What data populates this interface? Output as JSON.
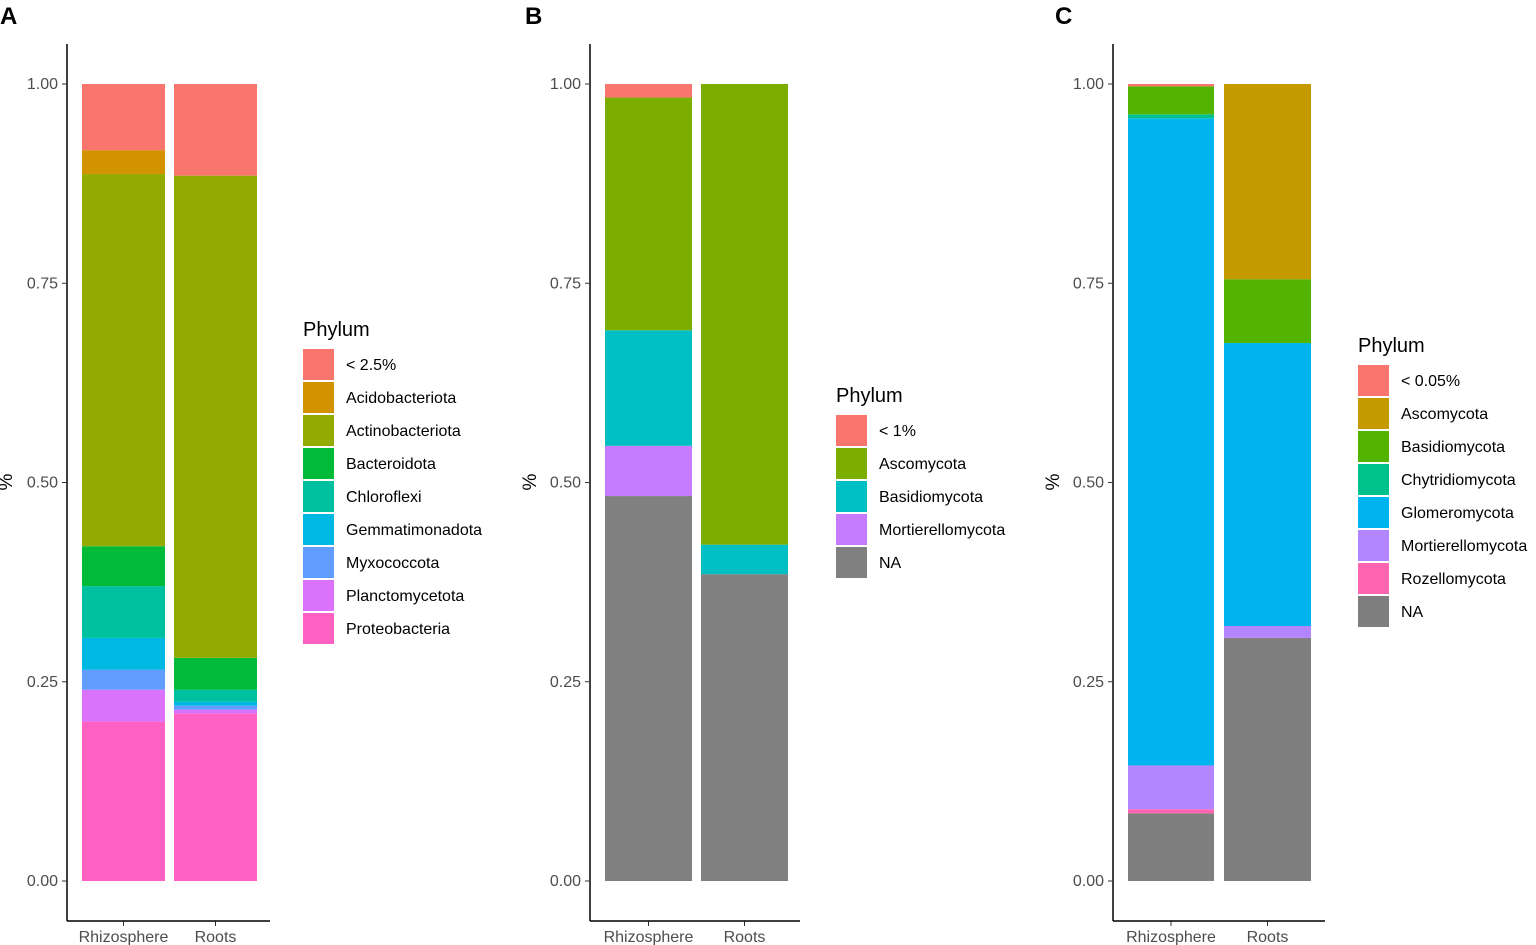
{
  "chart_data": [
    {
      "type": "bar",
      "stacked": true,
      "panel_label": "A",
      "ylabel": "%",
      "xlabel": "",
      "ylim": [
        0,
        1
      ],
      "yticks": [
        "0.00",
        "0.25",
        "0.50",
        "0.75",
        "1.00"
      ],
      "categories": [
        "Rhizosphere",
        "Roots"
      ],
      "legend_title": "Phylum",
      "series": [
        {
          "name": "Proteobacteria",
          "color": "#FF61C3",
          "values": [
            0.2,
            0.21
          ]
        },
        {
          "name": "Planctomycetota",
          "color": "#DB72FB",
          "values": [
            0.04,
            0.005
          ]
        },
        {
          "name": "Myxococcota",
          "color": "#619CFF",
          "values": [
            0.025,
            0.005
          ]
        },
        {
          "name": "Gemmatimonadota",
          "color": "#00B9E3",
          "values": [
            0.04,
            0.005
          ]
        },
        {
          "name": "Chloroflexi",
          "color": "#00C19F",
          "values": [
            0.065,
            0.015
          ]
        },
        {
          "name": "Bacteroidota",
          "color": "#00BA38",
          "values": [
            0.05,
            0.04
          ]
        },
        {
          "name": "Actinobacteriota",
          "color": "#93AA00",
          "values": [
            0.467,
            0.605
          ]
        },
        {
          "name": "Acidobacteriota",
          "color": "#D39200",
          "values": [
            0.03,
            0.0
          ]
        },
        {
          "name": "< 2.5%",
          "color": "#F8766D",
          "values": [
            0.083,
            0.115
          ]
        }
      ]
    },
    {
      "type": "bar",
      "stacked": true,
      "panel_label": "B",
      "ylabel": "%",
      "xlabel": "",
      "ylim": [
        0,
        1
      ],
      "yticks": [
        "0.00",
        "0.25",
        "0.50",
        "0.75",
        "1.00"
      ],
      "categories": [
        "Rhizosphere",
        "Roots"
      ],
      "legend_title": "Phylum",
      "series": [
        {
          "name": "NA",
          "color": "#808080",
          "values": [
            0.483,
            0.385
          ]
        },
        {
          "name": "Mortierellomycota",
          "color": "#C77CFF",
          "values": [
            0.063,
            0.0
          ]
        },
        {
          "name": "Basidiomycota",
          "color": "#00BFC4",
          "values": [
            0.145,
            0.037
          ]
        },
        {
          "name": "Ascomycota",
          "color": "#7CAE00",
          "values": [
            0.292,
            0.578
          ]
        },
        {
          "name": "< 1%",
          "color": "#F8766D",
          "values": [
            0.017,
            0.0
          ]
        }
      ]
    },
    {
      "type": "bar",
      "stacked": true,
      "panel_label": "C",
      "ylabel": "%",
      "xlabel": "",
      "ylim": [
        0,
        1
      ],
      "yticks": [
        "0.00",
        "0.25",
        "0.50",
        "0.75",
        "1.00"
      ],
      "categories": [
        "Rhizosphere",
        "Roots"
      ],
      "legend_title": "Phylum",
      "series": [
        {
          "name": "NA",
          "color": "#7F7F7F",
          "values": [
            0.085,
            0.305
          ]
        },
        {
          "name": "Rozellomycota",
          "color": "#FF64B0",
          "values": [
            0.005,
            0.0
          ]
        },
        {
          "name": "Mortierellomycota",
          "color": "#B385FF",
          "values": [
            0.055,
            0.015
          ]
        },
        {
          "name": "Glomeromycota",
          "color": "#00B4EF",
          "values": [
            0.812,
            0.355
          ]
        },
        {
          "name": "Chytridiomycota",
          "color": "#00C08B",
          "values": [
            0.005,
            0.0
          ]
        },
        {
          "name": "Basidiomycota",
          "color": "#53B400",
          "values": [
            0.035,
            0.08
          ]
        },
        {
          "name": "Ascomycota",
          "color": "#C49A00",
          "values": [
            0.0,
            0.245
          ]
        },
        {
          "name": "< 0.05%",
          "color": "#F8766D",
          "values": [
            0.003,
            0.0
          ]
        }
      ]
    }
  ]
}
